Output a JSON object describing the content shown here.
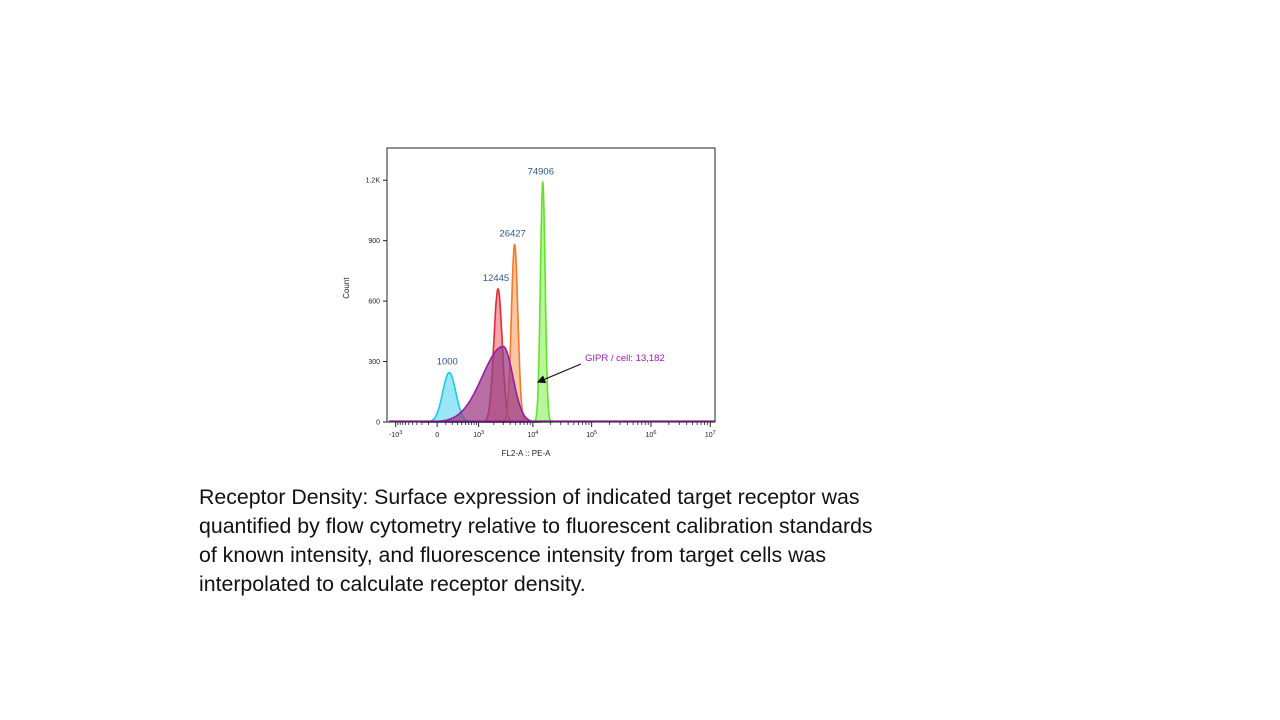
{
  "chart_data": {
    "type": "histogram",
    "xlabel": "FL2-A :: PE-A",
    "ylabel": "Count",
    "x_scale": "biexponential",
    "xlim": [
      -1500,
      12000000
    ],
    "ylim": [
      0,
      1360
    ],
    "x_ticks": [
      {
        "value": -1000,
        "base": "-10",
        "exp": "3"
      },
      {
        "value": 0,
        "base": "0",
        "exp": ""
      },
      {
        "value": 1000,
        "base": "10",
        "exp": "3"
      },
      {
        "value": 10000,
        "base": "10",
        "exp": "4"
      },
      {
        "value": 100000,
        "base": "10",
        "exp": "5"
      },
      {
        "value": 1000000,
        "base": "10",
        "exp": "6"
      },
      {
        "value": 10000000,
        "base": "10",
        "exp": "7"
      }
    ],
    "y_ticks": [
      {
        "value": 0,
        "label": "0"
      },
      {
        "value": 300,
        "label": "300"
      },
      {
        "value": 600,
        "label": "600"
      },
      {
        "value": 900,
        "label": "900"
      },
      {
        "value": 1200,
        "label": "1.2K"
      }
    ],
    "series": [
      {
        "label": "1000",
        "color": "#1ec8e6",
        "fill": "#55d6ef",
        "peak_x": 150,
        "peak_count": 245
      },
      {
        "label": "12445",
        "color": "#e02a3a",
        "fill": "#ee6a72",
        "peak_x": 2400,
        "peak_count": 660
      },
      {
        "label": "26427",
        "color": "#f07a28",
        "fill": "#f4a060",
        "peak_x": 4800,
        "peak_count": 880
      },
      {
        "label": "74906",
        "color": "#62e22c",
        "fill": "#8cee5c",
        "peak_x": 14800,
        "peak_count": 1190
      },
      {
        "label": "GIPR / cell: 13,182",
        "color": "#9a1ca8",
        "fill": "#9c3f86",
        "peak_x": 3000,
        "peak_count": 375
      }
    ],
    "annotation": {
      "text": "GIPR / cell: 13,182",
      "color": "#9a1ca8"
    }
  },
  "caption_lines": [
    "Receptor Density: Surface expression of indicated target receptor was",
    "quantified by flow cytometry relative to fluorescent calibration standards",
    "of known intensity, and fluorescence intensity from target cells was",
    "interpolated to calculate receptor density."
  ],
  "colors": {
    "label_blue": "#2a5a8c",
    "axis": "#222222"
  }
}
